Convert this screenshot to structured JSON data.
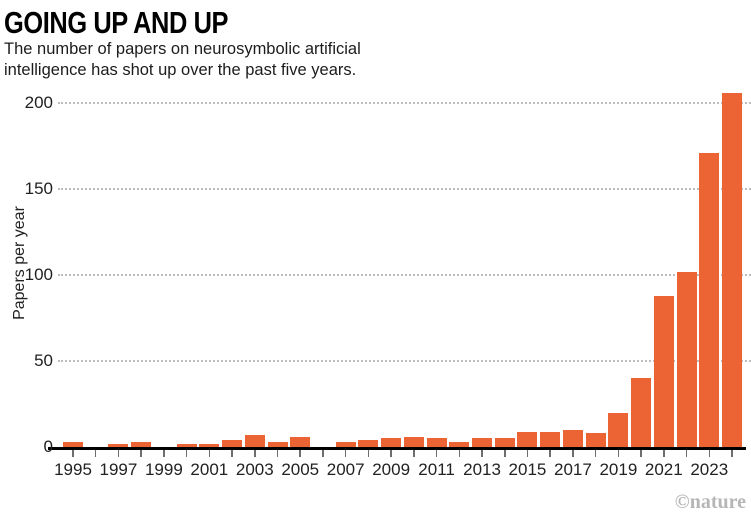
{
  "chart_data": {
    "type": "bar",
    "title": "GOING UP AND UP",
    "subtitle_lines": [
      "The number of papers on neurosymbolic artificial",
      "intelligence has shot up over the past five years."
    ],
    "xlabel": "",
    "ylabel": "Papers per year",
    "ylim": [
      0,
      215
    ],
    "yticks": [
      0,
      50,
      100,
      150,
      200
    ],
    "grid": "horizontal-dotted",
    "gridline_color": "#bdbdbd",
    "bar_color": "#ec6433",
    "axis_color": "#000000",
    "legend": "none",
    "categories": [
      1995,
      1996,
      1997,
      1998,
      1999,
      2000,
      2001,
      2002,
      2003,
      2004,
      2005,
      2006,
      2007,
      2008,
      2009,
      2010,
      2011,
      2012,
      2013,
      2014,
      2015,
      2016,
      2017,
      2018,
      2019,
      2020,
      2021,
      2022,
      2023,
      2024
    ],
    "values": [
      3,
      0,
      2,
      3,
      0,
      2,
      2,
      4,
      7,
      3,
      6,
      0,
      3,
      4,
      5,
      6,
      5,
      3,
      5,
      5,
      9,
      9,
      10,
      8,
      20,
      40,
      88,
      102,
      171,
      206
    ],
    "xtick_labels": [
      1995,
      1997,
      1999,
      2001,
      2003,
      2005,
      2007,
      2009,
      2011,
      2013,
      2015,
      2017,
      2019,
      2021,
      2023
    ]
  },
  "watermark": "©nature"
}
